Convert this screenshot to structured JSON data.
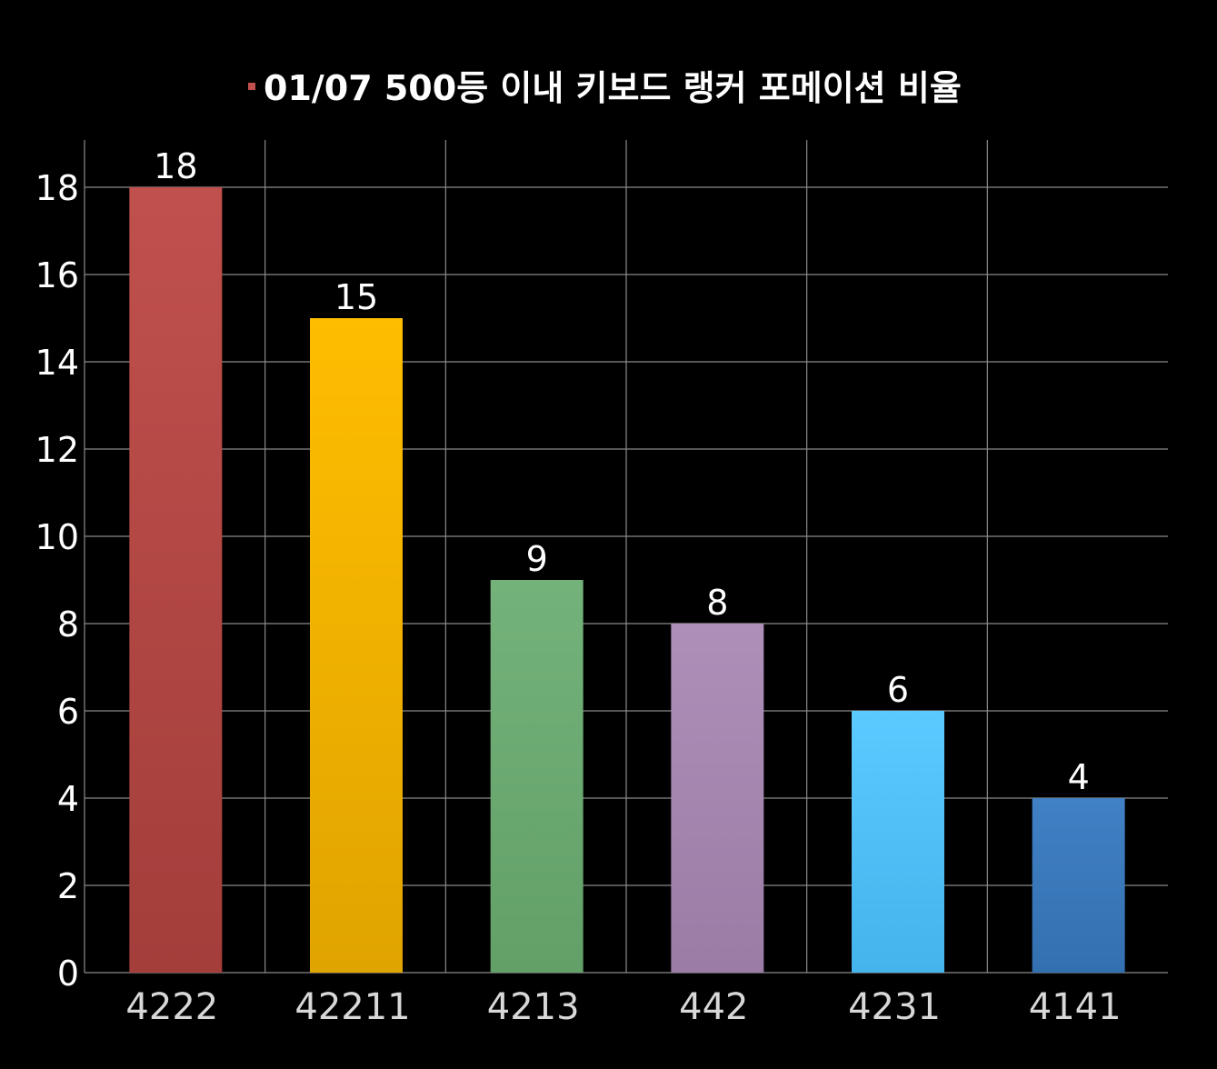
{
  "chart_data": {
    "type": "bar",
    "title": "01/07 500등 이내 키보드 랭커 포메이션 비율",
    "xlabel": "",
    "ylabel": "",
    "categories": [
      "4222",
      "42211",
      "4213",
      "442",
      "4231",
      "4141"
    ],
    "values": [
      18,
      15,
      9,
      8,
      6,
      4
    ],
    "data_labels": [
      "18",
      "15",
      "9",
      "8",
      "6",
      "4"
    ],
    "ylim": [
      0,
      19
    ],
    "y_ticks": [
      0,
      2,
      4,
      6,
      8,
      10,
      12,
      14,
      16,
      18
    ],
    "y_tick_labels": [
      "0",
      "2",
      "4",
      "6",
      "8",
      "10",
      "12",
      "14",
      "16",
      "18"
    ],
    "grid": true,
    "legend": "none",
    "title_marker_color": "#c0504d",
    "background": "#000000",
    "bar_colors": [
      [
        "#c0504d",
        "#a33e3b"
      ],
      [
        "#ffbd00",
        "#e0a400"
      ],
      [
        "#74b27b",
        "#62a068"
      ],
      [
        "#ad8fb8",
        "#9a7ca5"
      ],
      [
        "#5bcaff",
        "#45b3ec"
      ],
      [
        "#4080c4",
        "#3370b0"
      ]
    ]
  }
}
